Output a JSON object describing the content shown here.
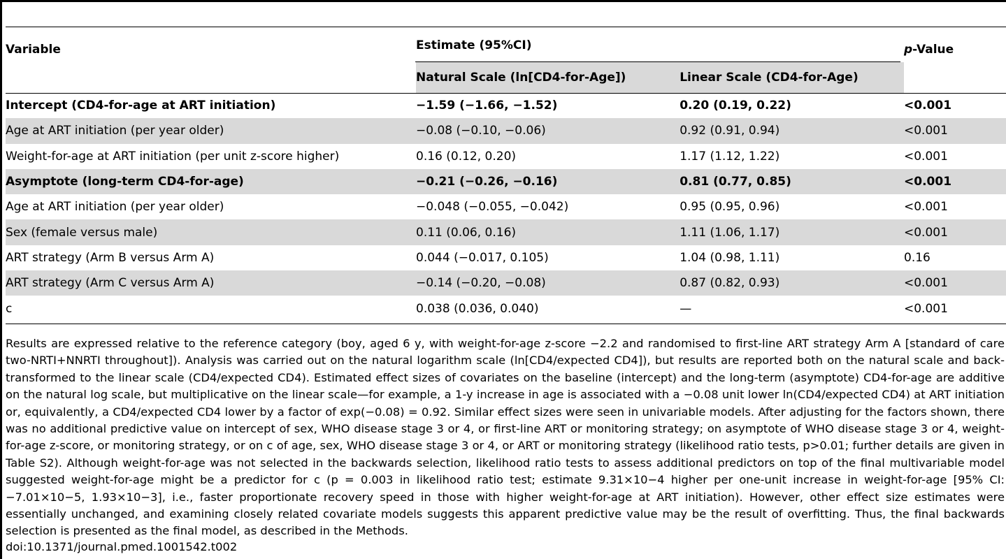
{
  "table": {
    "headers": {
      "variable": "Variable",
      "estimate": "Estimate (95%CI)",
      "pvalue": "p-Value",
      "natural": "Natural Scale (ln[CD4-for-Age])",
      "linear": "Linear Scale (CD4-for-Age)"
    },
    "rows": [
      {
        "variable": "Intercept (CD4-for-age at ART initiation)",
        "natural": "−1.59 (−1.66, −1.52)",
        "linear": "0.20 (0.19, 0.22)",
        "p": "<0.001",
        "bold": true,
        "shaded": false
      },
      {
        "variable": "Age at ART initiation (per year older)",
        "natural": "−0.08 (−0.10, −0.06)",
        "linear": "0.92 (0.91, 0.94)",
        "p": "<0.001",
        "bold": false,
        "shaded": true
      },
      {
        "variable": "Weight-for-age at ART initiation (per unit z-score higher)",
        "natural": "0.16 (0.12, 0.20)",
        "linear": "1.17 (1.12, 1.22)",
        "p": "<0.001",
        "bold": false,
        "shaded": false
      },
      {
        "variable": "Asymptote (long-term CD4-for-age)",
        "natural": "−0.21 (−0.26, −0.16)",
        "linear": "0.81 (0.77, 0.85)",
        "p": "<0.001",
        "bold": true,
        "shaded": true
      },
      {
        "variable": "Age at ART initiation (per year older)",
        "natural": "−0.048 (−0.055, −0.042)",
        "linear": "0.95 (0.95, 0.96)",
        "p": "<0.001",
        "bold": false,
        "shaded": false
      },
      {
        "variable": "Sex (female versus male)",
        "natural": "0.11 (0.06, 0.16)",
        "linear": "1.11 (1.06, 1.17)",
        "p": "<0.001",
        "bold": false,
        "shaded": true
      },
      {
        "variable": "ART strategy (Arm B versus Arm A)",
        "natural": "0.044 (−0.017, 0.105)",
        "linear": "1.04 (0.98, 1.11)",
        "p": "0.16",
        "bold": false,
        "shaded": false
      },
      {
        "variable": "ART strategy (Arm C versus Arm A)",
        "natural": "−0.14 (−0.20, −0.08)",
        "linear": "0.87 (0.82, 0.93)",
        "p": "<0.001",
        "bold": false,
        "shaded": true
      },
      {
        "variable": "c",
        "natural": "0.038 (0.036, 0.040)",
        "linear": "—",
        "p": "<0.001",
        "bold": false,
        "shaded": false
      }
    ]
  },
  "footnote": "Results are expressed relative to the reference category (boy, aged 6 y, with weight-for-age z-score −2.2 and randomised to first-line ART strategy Arm A [standard of care two-NRTI+NNRTI throughout]). Analysis was carried out on the natural logarithm scale (ln[CD4/expected CD4]), but results are reported both on the natural scale and back-transformed to the linear scale (CD4/expected CD4). Estimated effect sizes of covariates on the baseline (intercept) and the long-term (asymptote) CD4-for-age are additive on the natural log scale, but multiplicative on the linear scale—for example, a 1-y increase in age is associated with a −0.08 unit lower ln(CD4/expected CD4) at ART initiation or, equivalently, a CD4/expected CD4 lower by a factor of exp(−0.08) = 0.92. Similar effect sizes were seen in univariable models. After adjusting for the factors shown, there was no additional predictive value on intercept of sex, WHO disease stage 3 or 4, or first-line ART or monitoring strategy; on asymptote of WHO disease stage 3 or 4, weight-for-age z-score, or monitoring strategy, or on c of age, sex, WHO disease stage 3 or 4, or ART or monitoring strategy (likelihood ratio tests, p>0.01; further details are given in Table S2). Although weight-for-age was not selected in the backwards selection, likelihood ratio tests to assess additional predictors on top of the final multivariable model suggested weight-for-age might be a predictor for c (p = 0.003 in likelihood ratio test; estimate 9.31×10−4 higher per one-unit increase in weight-for-age [95% CI: −7.01×10−5, 1.93×10−3], i.e., faster proportionate recovery speed in those with higher weight-for-age at ART initiation). However, other effect size estimates were essentially unchanged, and examining closely related covariate models suggests this apparent predictive value may be the result of overfitting. Thus, the final backwards selection is presented as the final model, as described in the Methods.",
  "doi": "doi:10.1371/journal.pmed.1001542.t002"
}
